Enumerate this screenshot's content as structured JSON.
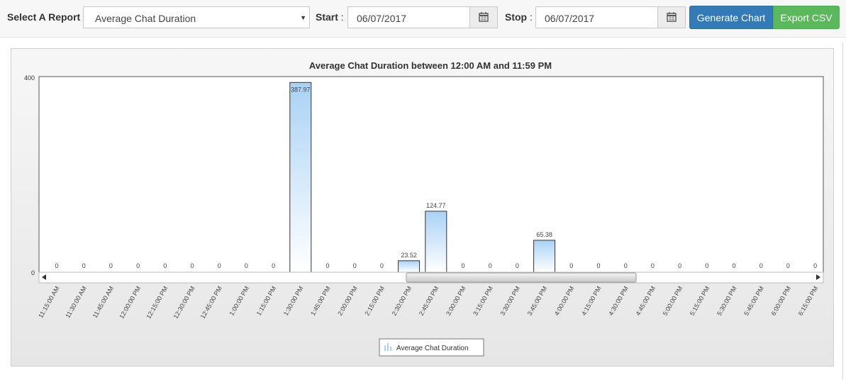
{
  "toolbar": {
    "report_label": "Select A Report",
    "report_value": "Average Chat Duration",
    "start_label": "Start",
    "start_value": "06/07/2017",
    "stop_label": "Stop",
    "stop_value": "06/07/2017",
    "generate_label": "Generate Chart",
    "export_label": "Export CSV",
    "icons": [
      "calendar-icon",
      "chevron-down-icon"
    ]
  },
  "colors": {
    "generate_button": "#337ab7",
    "export_button": "#5cb85c",
    "bar_top": "#a9d2f5",
    "bar_bottom": "#ffffff"
  },
  "chart_data": {
    "type": "bar",
    "title": "Average Chat Duration between 12:00 AM and 11:59 PM",
    "xlabel": "",
    "ylabel": "",
    "ylim": [
      0,
      400
    ],
    "y_ticks": [
      "0",
      "400"
    ],
    "categories": [
      "11:15:00 AM",
      "11:30:00 AM",
      "11:45:00 AM",
      "12:00:00 PM",
      "12:15:00 PM",
      "12:30:00 PM",
      "12:45:00 PM",
      "1:00:00 PM",
      "1:15:00 PM",
      "1:30:00 PM",
      "1:45:00 PM",
      "2:00:00 PM",
      "2:15:00 PM",
      "2:30:00 PM",
      "2:45:00 PM",
      "3:00:00 PM",
      "3:15:00 PM",
      "3:30:00 PM",
      "3:45:00 PM",
      "4:00:00 PM",
      "4:15:00 PM",
      "4:30:00 PM",
      "4:45:00 PM",
      "5:00:00 PM",
      "5:15:00 PM",
      "5:30:00 PM",
      "5:45:00 PM",
      "6:00:00 PM",
      "6:15:00 PM"
    ],
    "value_labels": [
      "0",
      "0",
      "0",
      "0",
      "0",
      "0",
      "0",
      "0",
      "0",
      "387.97",
      "0",
      "0",
      "0",
      "23.52",
      "124.77",
      "0",
      "0",
      "0",
      "65.38",
      "0",
      "0",
      "0",
      "0",
      "0",
      "0",
      "0",
      "0",
      "0",
      "0"
    ],
    "series": [
      {
        "name": "Average Chat Duration",
        "values": [
          0,
          0,
          0,
          0,
          0,
          0,
          0,
          0,
          0,
          387.97,
          0,
          0,
          0,
          23.52,
          124.77,
          0,
          0,
          0,
          65.38,
          0,
          0,
          0,
          0,
          0,
          0,
          0,
          0,
          0,
          0
        ]
      }
    ],
    "grid": false,
    "legend": "bottom-center"
  }
}
